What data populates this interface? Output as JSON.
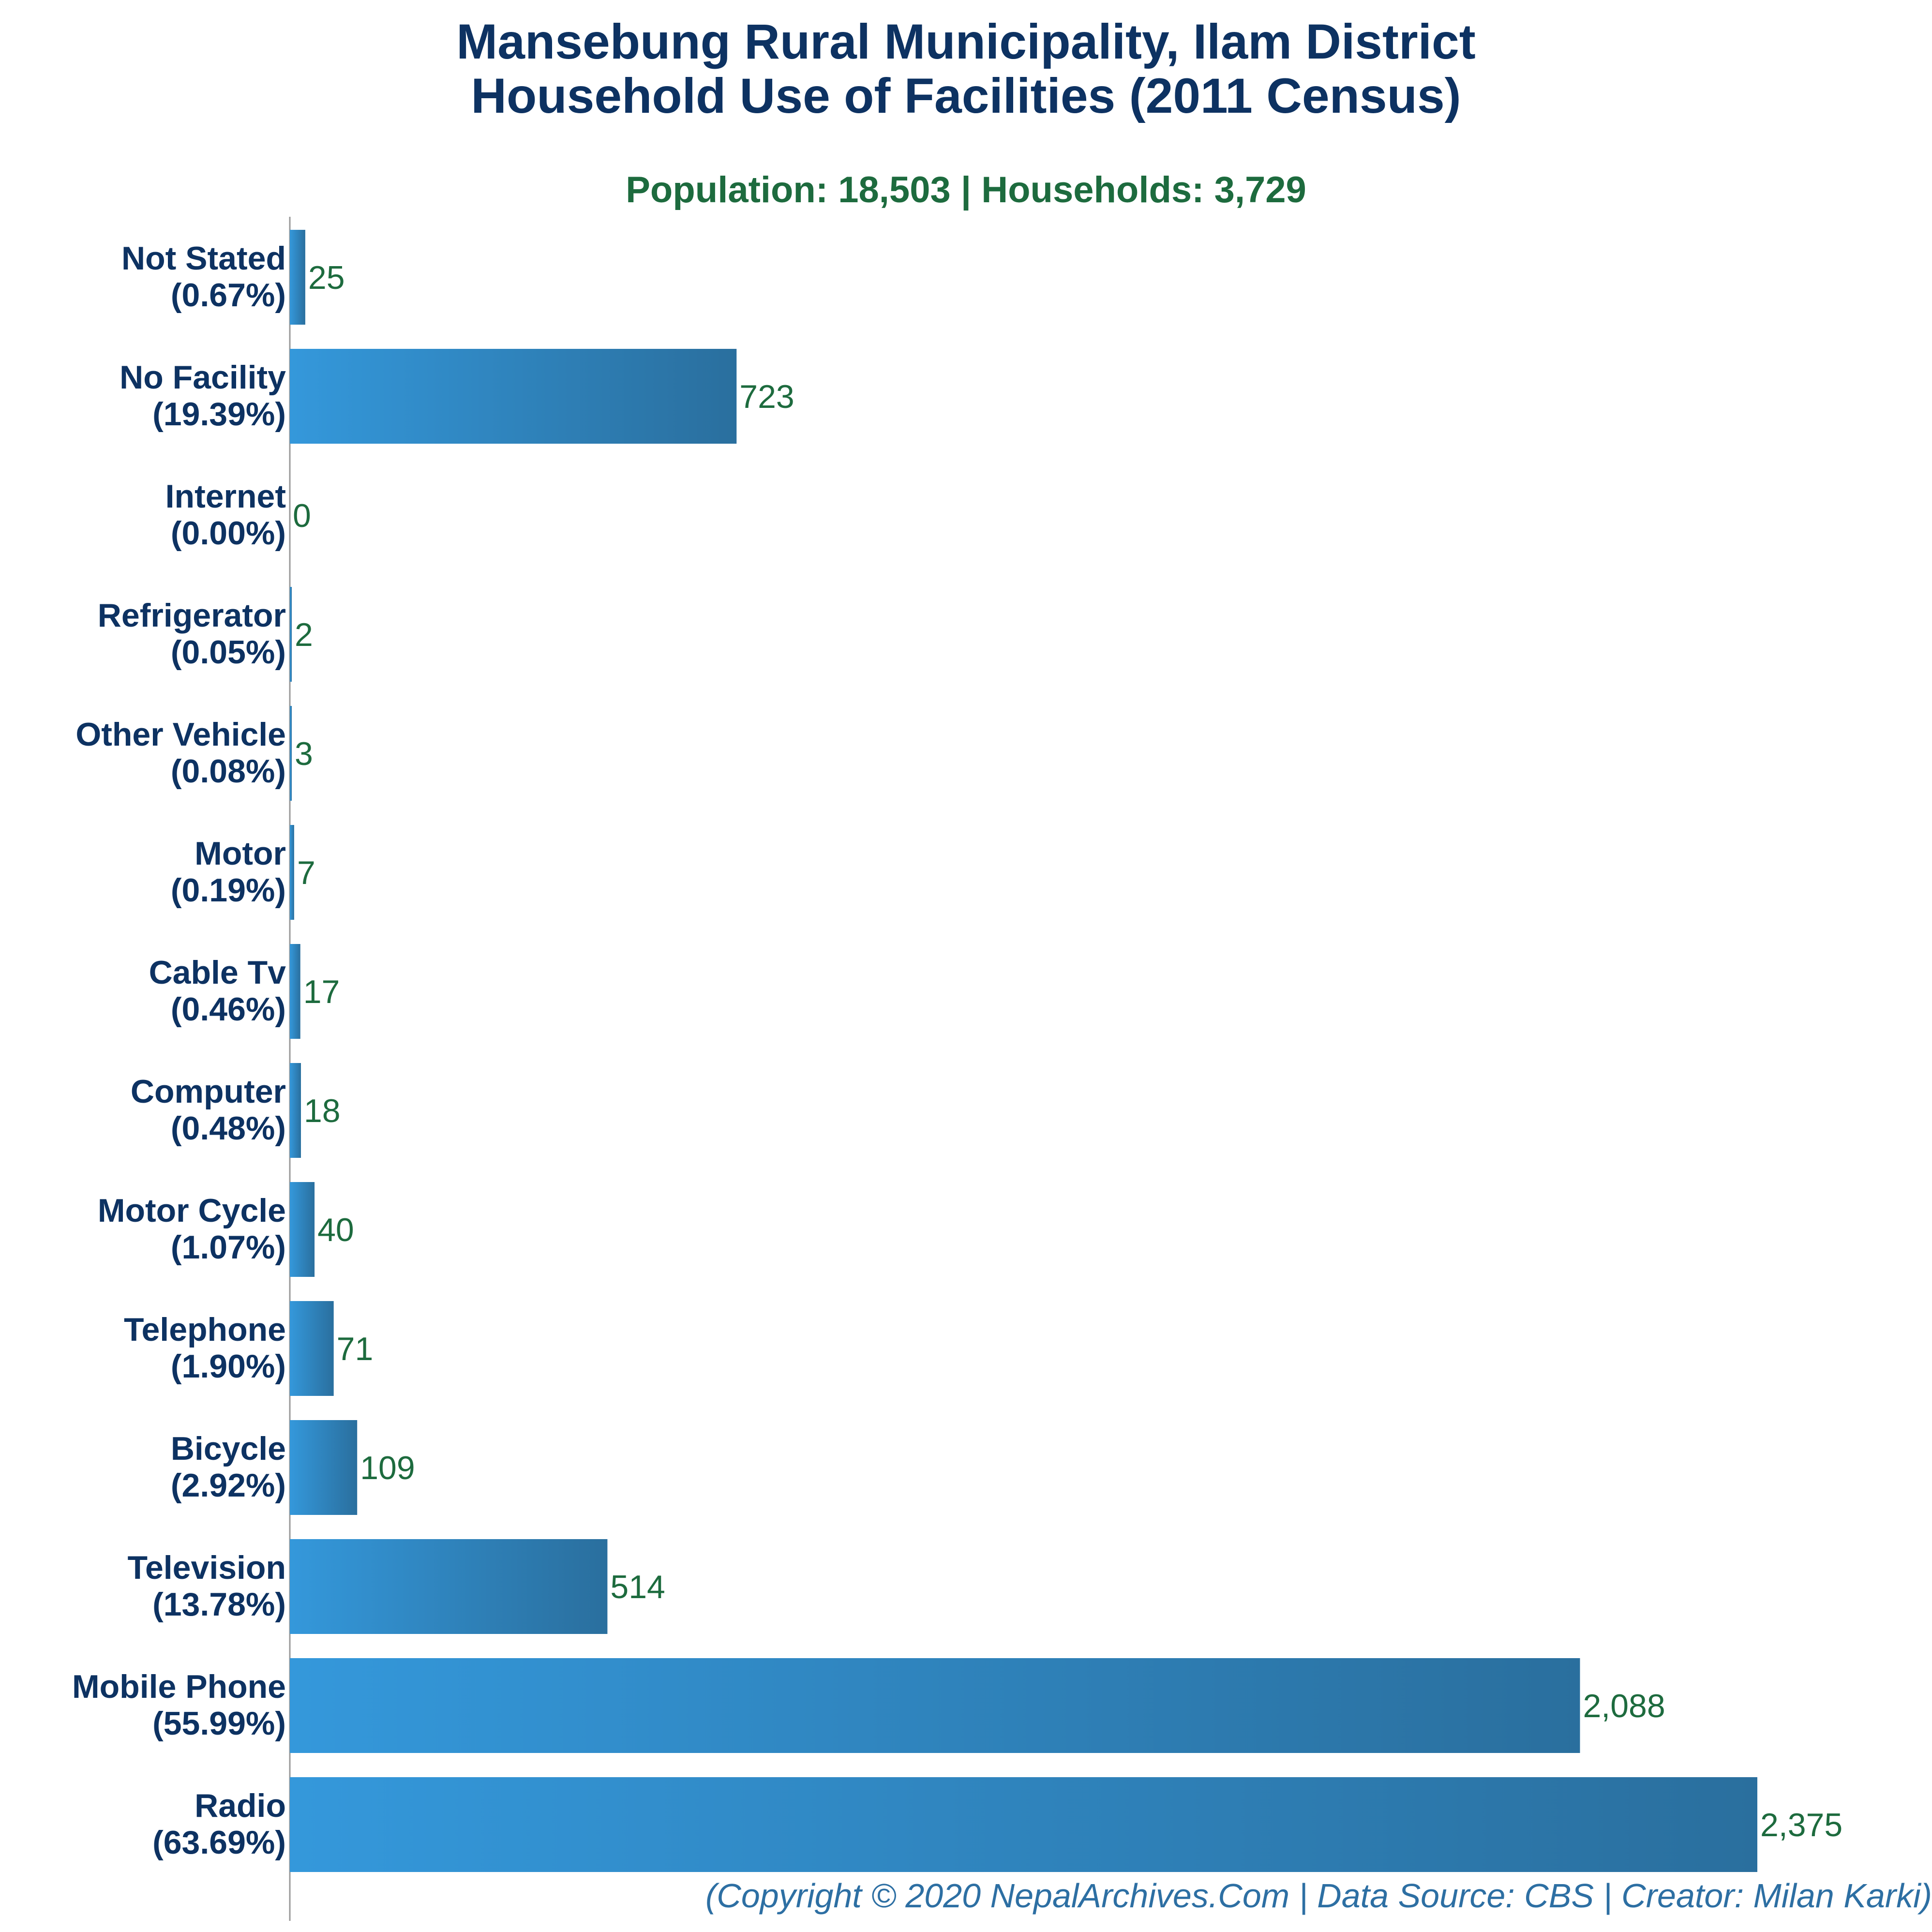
{
  "title_line1": "Mansebung Rural Municipality, Ilam District",
  "title_line2": "Household Use of Facilities (2011 Census)",
  "subtitle": "Population: 18,503 | Households: 3,729",
  "footer": "(Copyright © 2020 NepalArchives.Com | Data Source: CBS | Creator: Milan Karki)",
  "colors": {
    "bar_start": "#3498db",
    "bar_end": "#2a6f9e",
    "title": "#0d3262",
    "value_label": "#1d6b3e",
    "axis": "#999999"
  },
  "chart_data": {
    "type": "bar",
    "orientation": "horizontal",
    "categories": [
      "Not Stated",
      "No Facility",
      "Internet",
      "Refrigerator",
      "Other Vehicle",
      "Motor",
      "Cable Tv",
      "Computer",
      "Motor Cycle",
      "Telephone",
      "Bicycle",
      "Television",
      "Mobile Phone",
      "Radio"
    ],
    "percent_labels": [
      "(0.67%)",
      "(19.39%)",
      "(0.00%)",
      "(0.05%)",
      "(0.08%)",
      "(0.19%)",
      "(0.46%)",
      "(0.48%)",
      "(1.07%)",
      "(1.90%)",
      "(2.92%)",
      "(13.78%)",
      "(55.99%)",
      "(63.69%)"
    ],
    "values": [
      25,
      723,
      0,
      2,
      3,
      7,
      17,
      18,
      40,
      71,
      109,
      514,
      2088,
      2375
    ],
    "value_labels": [
      "25",
      "723",
      "0",
      "2",
      "3",
      "7",
      "17",
      "18",
      "40",
      "71",
      "109",
      "514",
      "2,088",
      "2,375"
    ],
    "xlim": [
      0,
      2375
    ],
    "grid": false,
    "legend": "none"
  }
}
